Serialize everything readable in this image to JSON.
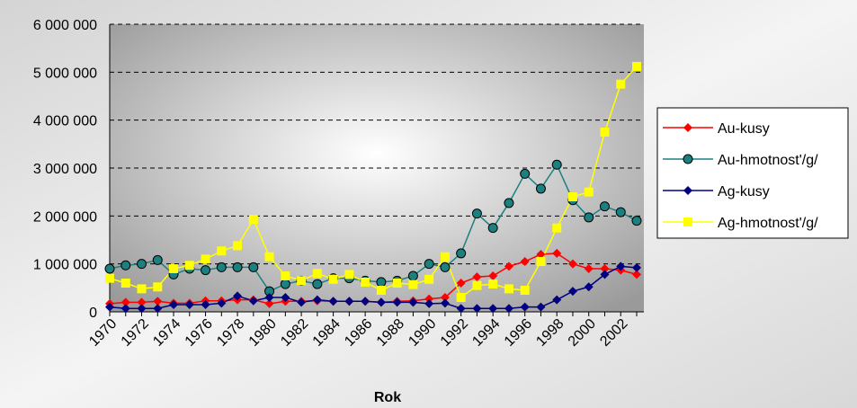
{
  "chart_data": {
    "type": "line",
    "x_label": "Rok",
    "categories": [
      "1970",
      null,
      "1972",
      null,
      "1974",
      null,
      "1976",
      null,
      "1978",
      null,
      "1980",
      null,
      "1982",
      null,
      "1984",
      null,
      "1986",
      null,
      "1988",
      null,
      "1990",
      null,
      "1992",
      null,
      "1994",
      null,
      "1996",
      null,
      "1998",
      null,
      "2000",
      null,
      "2002",
      null
    ],
    "series": [
      {
        "name": "Au-kusy",
        "color": "#ff0000",
        "marker": "diamond",
        "values": [
          170000,
          200000,
          200000,
          220000,
          180000,
          180000,
          230000,
          230000,
          250000,
          250000,
          170000,
          220000,
          220000,
          230000,
          220000,
          220000,
          220000,
          200000,
          220000,
          230000,
          270000,
          300000,
          600000,
          730000,
          750000,
          950000,
          1050000,
          1200000,
          1220000,
          1000000,
          900000,
          900000,
          870000,
          780000
        ]
      },
      {
        "name": "Au-hmotnost'/g/",
        "color": "#1a8080",
        "marker": "circle",
        "values": [
          900000,
          970000,
          1000000,
          1080000,
          780000,
          900000,
          870000,
          930000,
          930000,
          930000,
          430000,
          580000,
          650000,
          580000,
          700000,
          700000,
          650000,
          620000,
          650000,
          750000,
          1000000,
          930000,
          1220000,
          2050000,
          1750000,
          2270000,
          2880000,
          2570000,
          3070000,
          2330000,
          1970000,
          2200000,
          2080000,
          1900000
        ]
      },
      {
        "name": "Ag-kusy",
        "color": "#000080",
        "marker": "diamond",
        "values": [
          100000,
          70000,
          70000,
          70000,
          150000,
          150000,
          150000,
          180000,
          330000,
          230000,
          300000,
          300000,
          200000,
          250000,
          220000,
          220000,
          220000,
          200000,
          200000,
          200000,
          170000,
          180000,
          70000,
          70000,
          70000,
          70000,
          100000,
          100000,
          250000,
          430000,
          520000,
          780000,
          950000,
          920000
        ]
      },
      {
        "name": "Ag-hmotnost'/g/",
        "color": "#ffff00",
        "marker": "square",
        "values": [
          700000,
          600000,
          480000,
          520000,
          900000,
          970000,
          1100000,
          1270000,
          1380000,
          1930000,
          1150000,
          750000,
          650000,
          800000,
          680000,
          780000,
          620000,
          450000,
          600000,
          570000,
          680000,
          1150000,
          300000,
          550000,
          580000,
          480000,
          450000,
          1050000,
          1750000,
          2400000,
          2500000,
          3750000,
          4750000,
          5120000
        ]
      }
    ],
    "ylim": [
      0,
      6000000
    ],
    "yticks": [
      0,
      {
        "value": 1000000,
        "label": "1 000 000"
      },
      {
        "value": 2000000,
        "label": "2 000 000"
      },
      {
        "value": 3000000,
        "label": "3 000 000"
      },
      {
        "value": 4000000,
        "label": "4 000 000"
      },
      {
        "value": 5000000,
        "label": "5 000 000"
      },
      {
        "value": 6000000,
        "label": "6 000 000"
      }
    ],
    "grid": true,
    "legend": "right"
  }
}
